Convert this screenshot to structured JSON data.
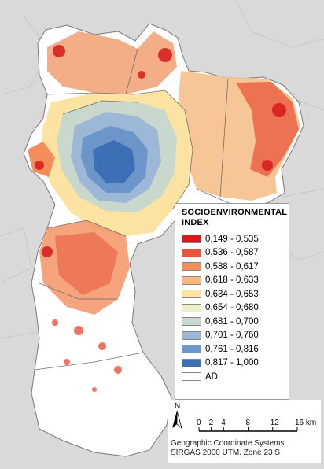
{
  "legend": {
    "title_line1": "SOCIOENVIRONMENTAL",
    "title_line2": "INDEX",
    "classes": [
      {
        "label": "0,149 - 0,535",
        "color": "#d7191c"
      },
      {
        "label": "0,536 - 0,587",
        "color": "#e8553a"
      },
      {
        "label": "0,588 - 0,617",
        "color": "#f38d5b"
      },
      {
        "label": "0,618 - 0,633",
        "color": "#fbb97c"
      },
      {
        "label": "0,634 - 0,653",
        "color": "#fde3a2"
      },
      {
        "label": "0,654 - 0,680",
        "color": "#eef1c7"
      },
      {
        "label": "0,681 - 0,700",
        "color": "#c9d8cc"
      },
      {
        "label": "0,701 - 0,760",
        "color": "#9db8d6"
      },
      {
        "label": "0,761 - 0,816",
        "color": "#6c95c9"
      },
      {
        "label": "0,817 - 1,000",
        "color": "#3d6fb4"
      },
      {
        "label": "AD",
        "color": "#ffffff"
      }
    ]
  },
  "scale_bar": {
    "north_label": "N",
    "ticks": [
      "0",
      "2",
      "4",
      "8",
      "12",
      "16 km"
    ]
  },
  "crs": {
    "line1": "Geographic Coordinate Systems",
    "line2": "SIRGAS 2000 UTM. Zone 23 S"
  }
}
